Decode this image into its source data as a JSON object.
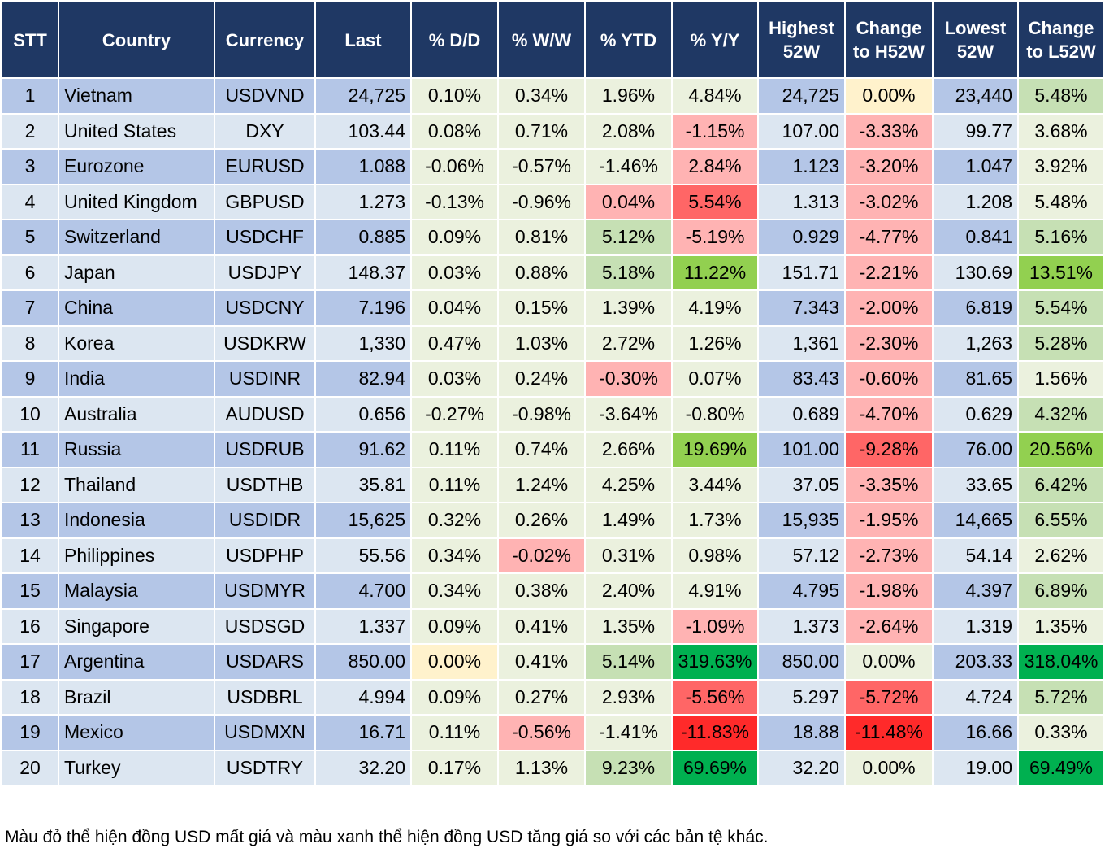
{
  "header": [
    "STT",
    "Country",
    "Currency",
    "Last",
    "% D/D",
    "% W/W",
    "% YTD",
    "% Y/Y",
    "Highest 52W",
    "Change to H52W",
    "Lowest 52W",
    "Change to L52W"
  ],
  "rows": [
    {
      "stt": "1",
      "country": "Vietnam",
      "currency": "USDVND",
      "last": "24,725",
      "dd": "0.10%",
      "ww": "0.34%",
      "ytd": "1.96%",
      "yy": "4.84%",
      "high": "24,725",
      "ch_high": "0.00%",
      "low": "23,440",
      "ch_low": "5.48%"
    },
    {
      "stt": "2",
      "country": "United States",
      "currency": "DXY",
      "last": "103.44",
      "dd": "0.08%",
      "ww": "0.71%",
      "ytd": "2.08%",
      "yy": "-1.15%",
      "high": "107.00",
      "ch_high": "-3.33%",
      "low": "99.77",
      "ch_low": "3.68%"
    },
    {
      "stt": "3",
      "country": "Eurozone",
      "currency": "EURUSD",
      "last": "1.088",
      "dd": "-0.06%",
      "ww": "-0.57%",
      "ytd": "-1.46%",
      "yy": "2.84%",
      "high": "1.123",
      "ch_high": "-3.20%",
      "low": "1.047",
      "ch_low": "3.92%"
    },
    {
      "stt": "4",
      "country": "United Kingdom",
      "currency": "GBPUSD",
      "last": "1.273",
      "dd": "-0.13%",
      "ww": "-0.96%",
      "ytd": "0.04%",
      "yy": "5.54%",
      "high": "1.313",
      "ch_high": "-3.02%",
      "low": "1.208",
      "ch_low": "5.48%"
    },
    {
      "stt": "5",
      "country": "Switzerland",
      "currency": "USDCHF",
      "last": "0.885",
      "dd": "0.09%",
      "ww": "0.81%",
      "ytd": "5.12%",
      "yy": "-5.19%",
      "high": "0.929",
      "ch_high": "-4.77%",
      "low": "0.841",
      "ch_low": "5.16%"
    },
    {
      "stt": "6",
      "country": "Japan",
      "currency": "USDJPY",
      "last": "148.37",
      "dd": "0.03%",
      "ww": "0.88%",
      "ytd": "5.18%",
      "yy": "11.22%",
      "high": "151.71",
      "ch_high": "-2.21%",
      "low": "130.69",
      "ch_low": "13.51%"
    },
    {
      "stt": "7",
      "country": "China",
      "currency": "USDCNY",
      "last": "7.196",
      "dd": "0.04%",
      "ww": "0.15%",
      "ytd": "1.39%",
      "yy": "4.19%",
      "high": "7.343",
      "ch_high": "-2.00%",
      "low": "6.819",
      "ch_low": "5.54%"
    },
    {
      "stt": "8",
      "country": "Korea",
      "currency": "USDKRW",
      "last": "1,330",
      "dd": "0.47%",
      "ww": "1.03%",
      "ytd": "2.72%",
      "yy": "1.26%",
      "high": "1,361",
      "ch_high": "-2.30%",
      "low": "1,263",
      "ch_low": "5.28%"
    },
    {
      "stt": "9",
      "country": "India",
      "currency": "USDINR",
      "last": "82.94",
      "dd": "0.03%",
      "ww": "0.24%",
      "ytd": "-0.30%",
      "yy": "0.07%",
      "high": "83.43",
      "ch_high": "-0.60%",
      "low": "81.65",
      "ch_low": "1.56%"
    },
    {
      "stt": "10",
      "country": "Australia",
      "currency": "AUDUSD",
      "last": "0.656",
      "dd": "-0.27%",
      "ww": "-0.98%",
      "ytd": "-3.64%",
      "yy": "-0.80%",
      "high": "0.689",
      "ch_high": "-4.70%",
      "low": "0.629",
      "ch_low": "4.32%"
    },
    {
      "stt": "11",
      "country": "Russia",
      "currency": "USDRUB",
      "last": "91.62",
      "dd": "0.11%",
      "ww": "0.74%",
      "ytd": "2.66%",
      "yy": "19.69%",
      "high": "101.00",
      "ch_high": "-9.28%",
      "low": "76.00",
      "ch_low": "20.56%"
    },
    {
      "stt": "12",
      "country": "Thailand",
      "currency": "USDTHB",
      "last": "35.81",
      "dd": "0.11%",
      "ww": "1.24%",
      "ytd": "4.25%",
      "yy": "3.44%",
      "high": "37.05",
      "ch_high": "-3.35%",
      "low": "33.65",
      "ch_low": "6.42%"
    },
    {
      "stt": "13",
      "country": "Indonesia",
      "currency": "USDIDR",
      "last": "15,625",
      "dd": "0.32%",
      "ww": "0.26%",
      "ytd": "1.49%",
      "yy": "1.73%",
      "high": "15,935",
      "ch_high": "-1.95%",
      "low": "14,665",
      "ch_low": "6.55%"
    },
    {
      "stt": "14",
      "country": "Philippines",
      "currency": "USDPHP",
      "last": "55.56",
      "dd": "0.34%",
      "ww": "-0.02%",
      "ytd": "0.31%",
      "yy": "0.98%",
      "high": "57.12",
      "ch_high": "-2.73%",
      "low": "54.14",
      "ch_low": "2.62%"
    },
    {
      "stt": "15",
      "country": "Malaysia",
      "currency": "USDMYR",
      "last": "4.700",
      "dd": "0.34%",
      "ww": "0.38%",
      "ytd": "2.40%",
      "yy": "4.91%",
      "high": "4.795",
      "ch_high": "-1.98%",
      "low": "4.397",
      "ch_low": "6.89%"
    },
    {
      "stt": "16",
      "country": "Singapore",
      "currency": "USDSGD",
      "last": "1.337",
      "dd": "0.09%",
      "ww": "0.41%",
      "ytd": "1.35%",
      "yy": "-1.09%",
      "high": "1.373",
      "ch_high": "-2.64%",
      "low": "1.319",
      "ch_low": "1.35%"
    },
    {
      "stt": "17",
      "country": "Argentina",
      "currency": "USDARS",
      "last": "850.00",
      "dd": "0.00%",
      "ww": "0.41%",
      "ytd": "5.14%",
      "yy": "319.63%",
      "high": "850.00",
      "ch_high": "0.00%",
      "low": "203.33",
      "ch_low": "318.04%"
    },
    {
      "stt": "18",
      "country": "Brazil",
      "currency": "USDBRL",
      "last": "4.994",
      "dd": "0.09%",
      "ww": "0.27%",
      "ytd": "2.93%",
      "yy": "-5.56%",
      "high": "5.297",
      "ch_high": "-5.72%",
      "low": "4.724",
      "ch_low": "5.72%"
    },
    {
      "stt": "19",
      "country": "Mexico",
      "currency": "USDMXN",
      "last": "16.71",
      "dd": "0.11%",
      "ww": "-0.56%",
      "ytd": "-1.41%",
      "yy": "-11.83%",
      "high": "18.88",
      "ch_high": "-11.48%",
      "low": "16.66",
      "ch_low": "0.33%"
    },
    {
      "stt": "20",
      "country": "Turkey",
      "currency": "USDTRY",
      "last": "32.20",
      "dd": "0.17%",
      "ww": "1.13%",
      "ytd": "9.23%",
      "yy": "69.69%",
      "high": "32.20",
      "ch_high": "0.00%",
      "low": "19.00",
      "ch_low": "69.49%"
    }
  ],
  "highlights": {
    "1": {
      "ch_high": "y0",
      "ch_low": "g1"
    },
    "2": {
      "yy": "r1",
      "ch_high": "r1"
    },
    "3": {
      "yy": "r1",
      "ch_high": "r1"
    },
    "4": {
      "ytd": "r1",
      "yy": "r2",
      "ch_high": "r1"
    },
    "5": {
      "ytd": "g1",
      "yy": "r1",
      "ch_high": "r1",
      "ch_low": "g1"
    },
    "6": {
      "ytd": "g1",
      "yy": "g2",
      "ch_high": "r1",
      "ch_low": "g2"
    },
    "7": {
      "ch_high": "r1",
      "ch_low": "g1"
    },
    "8": {
      "ch_high": "r1",
      "ch_low": "g1"
    },
    "9": {
      "ytd": "r1",
      "ch_high": "r1"
    },
    "10": {
      "ch_high": "r1",
      "ch_low": "g1"
    },
    "11": {
      "yy": "g2",
      "ch_high": "r2",
      "ch_low": "g2"
    },
    "12": {
      "ch_high": "r1",
      "ch_low": "g1"
    },
    "13": {
      "ch_high": "r1",
      "ch_low": "g1"
    },
    "14": {
      "ww": "r1",
      "ch_high": "r1"
    },
    "15": {
      "ch_high": "r1",
      "ch_low": "g1"
    },
    "16": {
      "yy": "r1",
      "ch_high": "r1"
    },
    "17": {
      "dd": "y0",
      "ytd": "g1",
      "yy": "g3",
      "ch_low": "g3"
    },
    "18": {
      "yy": "r2",
      "ch_high": "r2",
      "ch_low": "g1"
    },
    "19": {
      "ww": "r1",
      "yy": "r3",
      "ch_high": "r3"
    },
    "20": {
      "ytd": "g1",
      "yy": "g3",
      "ch_low": "g3"
    }
  },
  "note": "Màu đỏ thể hiện đồng USD mất giá và màu xanh thể hiện đồng USD tăng giá so với các bản tệ khác."
}
